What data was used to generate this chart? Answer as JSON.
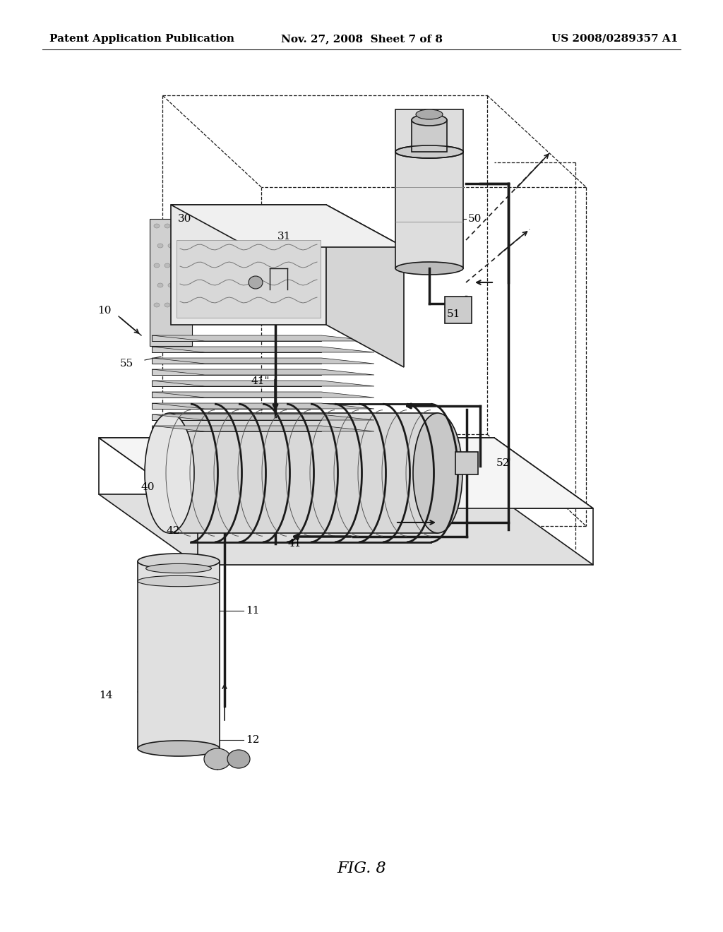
{
  "background_color": "#ffffff",
  "header_left": "Patent Application Publication",
  "header_center": "Nov. 27, 2008  Sheet 7 of 8",
  "header_right": "US 2008/0289357 A1",
  "figure_caption": "FIG. 8",
  "header_fontsize": 11,
  "label_fontsize": 11,
  "caption_fontsize": 16,
  "line_color": "#1a1a1a",
  "fill_light": "#e8e8e8",
  "fill_mid": "#cccccc",
  "fill_dark": "#999999"
}
